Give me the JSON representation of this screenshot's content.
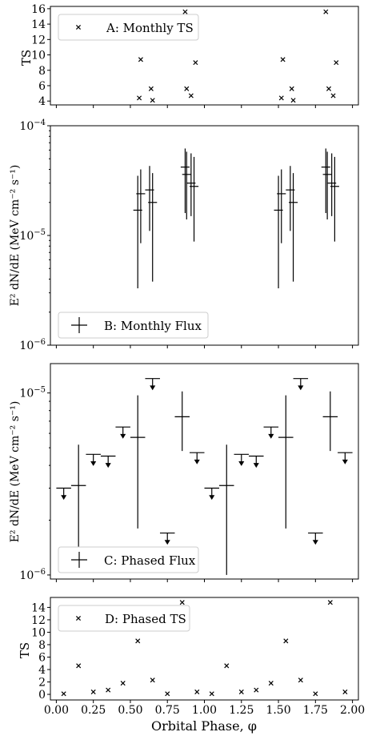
{
  "figure": {
    "x_axis_label": "Orbital Phase, φ",
    "x_ticks": [
      "0.00",
      "0.25",
      "0.50",
      "0.75",
      "1.00",
      "1.25",
      "1.50",
      "1.75",
      "2.00"
    ]
  },
  "chart_data": [
    {
      "type": "scatter",
      "marker": "x",
      "legend": "A: Monthly TS",
      "legend_position": "top-left",
      "ylabel": "TS",
      "ylim": [
        3.5,
        16.3
      ],
      "xlim": [
        -0.04,
        2.04
      ],
      "y_ticks": [
        "4",
        "6",
        "8",
        "10",
        "12",
        "14",
        "16"
      ],
      "points": [
        {
          "x": 0.56,
          "y": 4.4
        },
        {
          "x": 0.57,
          "y": 9.4
        },
        {
          "x": 0.64,
          "y": 5.6
        },
        {
          "x": 0.65,
          "y": 4.1
        },
        {
          "x": 0.87,
          "y": 15.6
        },
        {
          "x": 0.88,
          "y": 5.6
        },
        {
          "x": 0.91,
          "y": 4.7
        },
        {
          "x": 0.94,
          "y": 9.0
        },
        {
          "x": 1.52,
          "y": 4.4
        },
        {
          "x": 1.53,
          "y": 9.4
        },
        {
          "x": 1.59,
          "y": 5.6
        },
        {
          "x": 1.6,
          "y": 4.1
        },
        {
          "x": 1.82,
          "y": 15.6
        },
        {
          "x": 1.84,
          "y": 5.6
        },
        {
          "x": 1.87,
          "y": 4.7
        },
        {
          "x": 1.89,
          "y": 9.0
        }
      ]
    },
    {
      "type": "scatter",
      "marker": "errorbar",
      "legend": "B: Monthly Flux",
      "legend_position": "bottom-left",
      "ylabel": "E² dN/dE (MeV cm⁻² s⁻¹)",
      "yscale": "log",
      "ylim": [
        1e-06,
        0.0001
      ],
      "xlim": [
        -0.04,
        2.04
      ],
      "y_ticks": [
        {
          "value": 1e-06,
          "base": "10",
          "exp": "−6"
        },
        {
          "value": 1e-05,
          "base": "10",
          "exp": "−5"
        },
        {
          "value": 0.0001,
          "base": "10",
          "exp": "−4"
        }
      ],
      "points": [
        {
          "x": 0.55,
          "y": 1.7e-05,
          "xerr": 0.03,
          "ylo": 3.3e-06,
          "yhi": 3.5e-05
        },
        {
          "x": 0.57,
          "y": 2.4e-05,
          "xerr": 0.03,
          "ylo": 8.5e-06,
          "yhi": 4e-05
        },
        {
          "x": 0.63,
          "y": 2.6e-05,
          "xerr": 0.03,
          "ylo": 1.1e-05,
          "yhi": 4.3e-05
        },
        {
          "x": 0.65,
          "y": 2e-05,
          "xerr": 0.03,
          "ylo": 3.8e-06,
          "yhi": 3.7e-05
        },
        {
          "x": 0.87,
          "y": 4.2e-05,
          "xerr": 0.03,
          "ylo": 1.6e-05,
          "yhi": 6.2e-05
        },
        {
          "x": 0.88,
          "y": 3.6e-05,
          "xerr": 0.03,
          "ylo": 1.4e-05,
          "yhi": 5.8e-05
        },
        {
          "x": 0.91,
          "y": 3e-05,
          "xerr": 0.03,
          "ylo": 1.5e-05,
          "yhi": 5.6e-05
        },
        {
          "x": 0.93,
          "y": 2.8e-05,
          "xerr": 0.03,
          "ylo": 8.8e-06,
          "yhi": 5.2e-05
        },
        {
          "x": 1.5,
          "y": 1.7e-05,
          "xerr": 0.03,
          "ylo": 3.3e-06,
          "yhi": 3.5e-05
        },
        {
          "x": 1.52,
          "y": 2.4e-05,
          "xerr": 0.03,
          "ylo": 8.5e-06,
          "yhi": 4e-05
        },
        {
          "x": 1.58,
          "y": 2.6e-05,
          "xerr": 0.03,
          "ylo": 1.1e-05,
          "yhi": 4.3e-05
        },
        {
          "x": 1.6,
          "y": 2e-05,
          "xerr": 0.03,
          "ylo": 3.8e-06,
          "yhi": 3.7e-05
        },
        {
          "x": 1.82,
          "y": 4.2e-05,
          "xerr": 0.03,
          "ylo": 1.6e-05,
          "yhi": 6.2e-05
        },
        {
          "x": 1.83,
          "y": 3.6e-05,
          "xerr": 0.03,
          "ylo": 1.4e-05,
          "yhi": 5.8e-05
        },
        {
          "x": 1.86,
          "y": 3e-05,
          "xerr": 0.03,
          "ylo": 1.5e-05,
          "yhi": 5.6e-05
        },
        {
          "x": 1.88,
          "y": 2.8e-05,
          "xerr": 0.03,
          "ylo": 8.8e-06,
          "yhi": 5.2e-05
        }
      ]
    },
    {
      "type": "scatter",
      "marker": "errorbar-with-upper-limits",
      "legend": "C: Phased Flux",
      "legend_position": "bottom-left",
      "ylabel": "E² dN/dE (MeV cm⁻² s⁻¹)",
      "yscale": "log",
      "ylim": [
        9.5e-07,
        1.45e-05
      ],
      "xlim": [
        -0.04,
        2.04
      ],
      "y_ticks": [
        {
          "value": 1e-06,
          "base": "10",
          "exp": "−6"
        },
        {
          "value": 1e-05,
          "base": "10",
          "exp": "−5"
        }
      ],
      "upper_limits": [
        {
          "x": 0.05,
          "y": 3e-06
        },
        {
          "x": 0.25,
          "y": 4.6e-06
        },
        {
          "x": 0.35,
          "y": 4.5e-06
        },
        {
          "x": 0.45,
          "y": 6.5e-06
        },
        {
          "x": 0.65,
          "y": 1.2e-05
        },
        {
          "x": 0.75,
          "y": 1.7e-06
        },
        {
          "x": 0.95,
          "y": 4.7e-06
        },
        {
          "x": 1.05,
          "y": 3e-06
        },
        {
          "x": 1.25,
          "y": 4.6e-06
        },
        {
          "x": 1.35,
          "y": 4.5e-06
        },
        {
          "x": 1.45,
          "y": 6.5e-06
        },
        {
          "x": 1.65,
          "y": 1.2e-05
        },
        {
          "x": 1.75,
          "y": 1.7e-06
        },
        {
          "x": 1.95,
          "y": 4.7e-06
        }
      ],
      "points": [
        {
          "x": 0.15,
          "y": 3.1e-06,
          "xerr": 0.05,
          "ylo": 1.25e-06,
          "yhi": 5.2e-06
        },
        {
          "x": 0.55,
          "y": 5.7e-06,
          "xerr": 0.05,
          "ylo": 1.8e-06,
          "yhi": 9.7e-06
        },
        {
          "x": 0.85,
          "y": 7.4e-06,
          "xerr": 0.05,
          "ylo": 4.8e-06,
          "yhi": 1.02e-05
        },
        {
          "x": 1.15,
          "y": 3.1e-06,
          "xerr": 0.05,
          "ylo": 1e-06,
          "yhi": 5.2e-06
        },
        {
          "x": 1.55,
          "y": 5.7e-06,
          "xerr": 0.05,
          "ylo": 1.8e-06,
          "yhi": 9.7e-06
        },
        {
          "x": 1.85,
          "y": 7.4e-06,
          "xerr": 0.05,
          "ylo": 4.8e-06,
          "yhi": 1.02e-05
        }
      ]
    },
    {
      "type": "scatter",
      "marker": "x",
      "legend": "D: Phased TS",
      "legend_position": "top-left",
      "ylabel": "TS",
      "ylim": [
        -0.9,
        15.6
      ],
      "xlim": [
        -0.04,
        2.04
      ],
      "y_ticks": [
        "0",
        "2",
        "4",
        "6",
        "8",
        "10",
        "12",
        "14"
      ],
      "points": [
        {
          "x": 0.05,
          "y": 0.1
        },
        {
          "x": 0.15,
          "y": 4.6
        },
        {
          "x": 0.25,
          "y": 0.4
        },
        {
          "x": 0.35,
          "y": 0.7
        },
        {
          "x": 0.45,
          "y": 1.8
        },
        {
          "x": 0.55,
          "y": 8.6
        },
        {
          "x": 0.65,
          "y": 2.3
        },
        {
          "x": 0.75,
          "y": 0.1
        },
        {
          "x": 0.85,
          "y": 14.8
        },
        {
          "x": 0.95,
          "y": 0.4
        },
        {
          "x": 1.05,
          "y": 0.1
        },
        {
          "x": 1.15,
          "y": 4.6
        },
        {
          "x": 1.25,
          "y": 0.4
        },
        {
          "x": 1.35,
          "y": 0.7
        },
        {
          "x": 1.45,
          "y": 1.8
        },
        {
          "x": 1.55,
          "y": 8.6
        },
        {
          "x": 1.65,
          "y": 2.3
        },
        {
          "x": 1.75,
          "y": 0.1
        },
        {
          "x": 1.85,
          "y": 14.8
        },
        {
          "x": 1.95,
          "y": 0.4
        }
      ]
    }
  ]
}
